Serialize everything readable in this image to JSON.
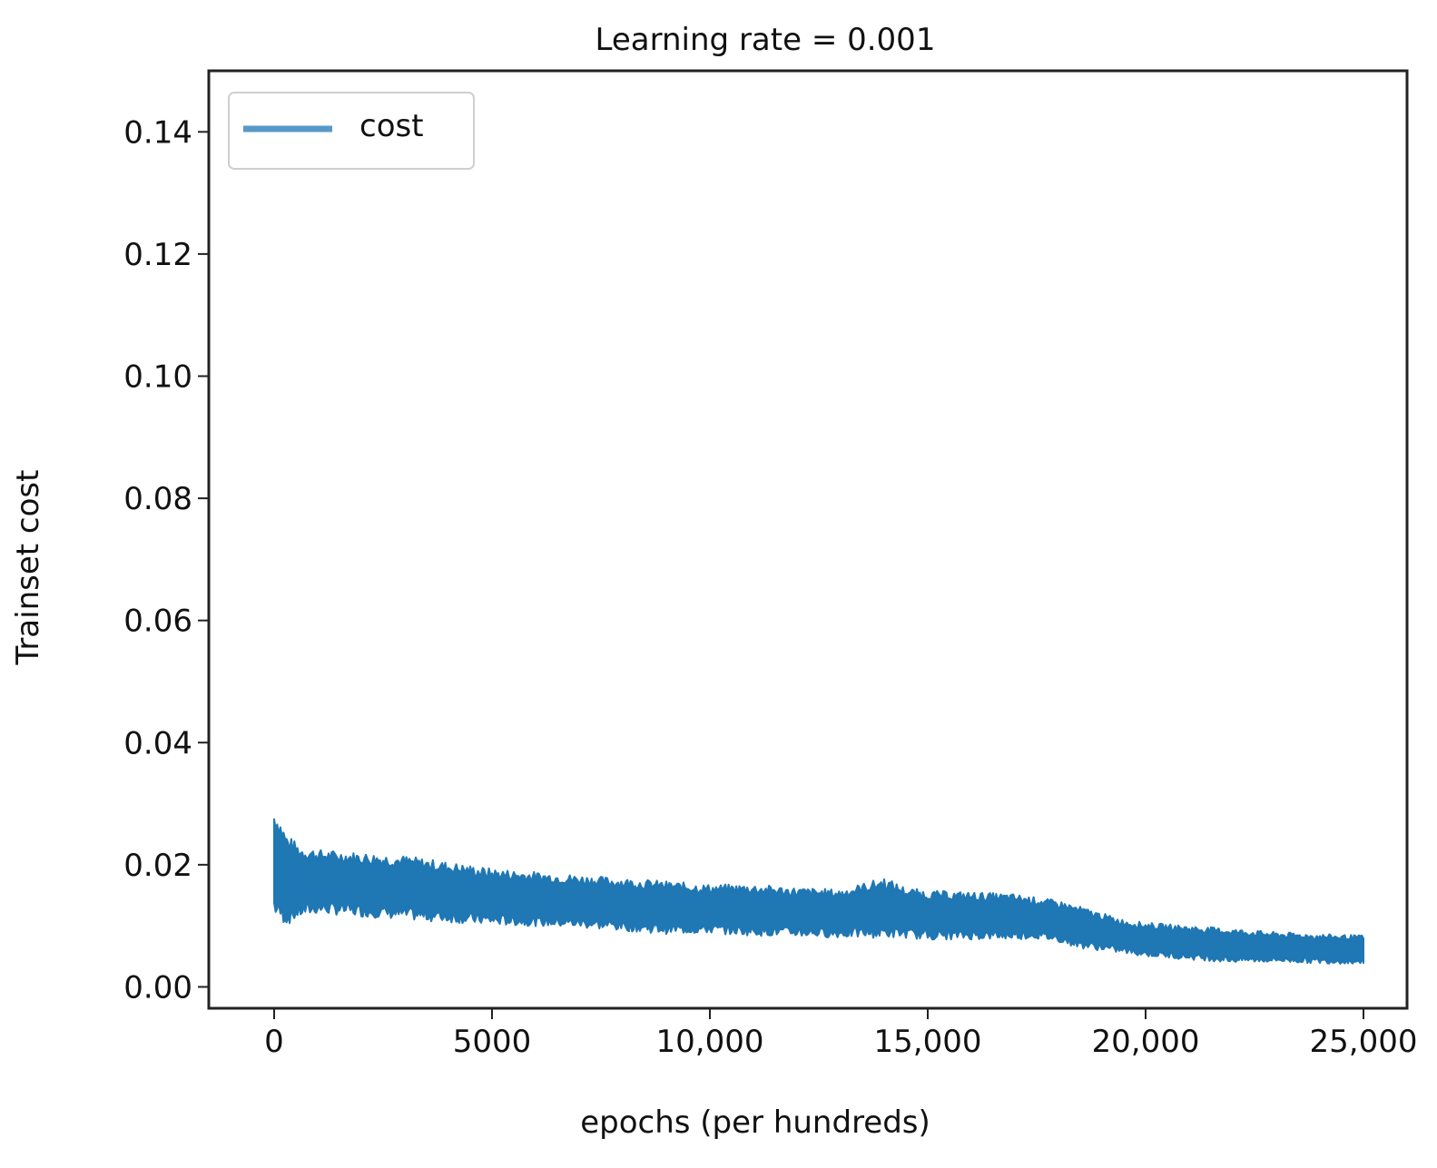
{
  "chart_data": {
    "type": "line",
    "title": "Learning rate = 0.001",
    "xlabel": "epochs (per hundreds)",
    "ylabel": "Trainset cost",
    "xlim": [
      -1500,
      26000
    ],
    "ylim": [
      -0.0035,
      0.15
    ],
    "x_ticks": [
      0,
      5000,
      10000,
      15000,
      20000,
      25000
    ],
    "x_tick_labels": [
      "0",
      "5000",
      "10,000",
      "15,000",
      "20,000",
      "25,000"
    ],
    "y_ticks": [
      0.0,
      0.02,
      0.04,
      0.06,
      0.08,
      0.1,
      0.12,
      0.14
    ],
    "y_tick_labels": [
      "0.00",
      "0.02",
      "0.04",
      "0.06",
      "0.08",
      "0.10",
      "0.12",
      "0.14"
    ],
    "grid": false,
    "legend": {
      "position": "upper-left",
      "entries": [
        "cost"
      ]
    },
    "series": [
      {
        "name": "cost",
        "color": "#1f77b4",
        "x": [
          0,
          100,
          300,
          600,
          1000,
          2000,
          3000,
          4000,
          5000,
          6000,
          7000,
          8000,
          9000,
          10000,
          11000,
          12000,
          13000,
          14000,
          14500,
          15000,
          16000,
          17000,
          17500,
          18000,
          18500,
          19000,
          19500,
          20000,
          21000,
          22000,
          23000,
          24000,
          25000
        ],
        "upper": [
          0.0275,
          0.0265,
          0.0235,
          0.022,
          0.0215,
          0.021,
          0.0205,
          0.0195,
          0.0185,
          0.018,
          0.0175,
          0.017,
          0.0165,
          0.016,
          0.016,
          0.0155,
          0.0152,
          0.017,
          0.0155,
          0.015,
          0.0148,
          0.0145,
          0.014,
          0.0135,
          0.0125,
          0.0115,
          0.0105,
          0.01,
          0.0095,
          0.009,
          0.0085,
          0.0082,
          0.008
        ],
        "lower": [
          0.0135,
          0.0125,
          0.0115,
          0.0125,
          0.013,
          0.0125,
          0.012,
          0.0115,
          0.011,
          0.0108,
          0.0105,
          0.01,
          0.0095,
          0.0095,
          0.0092,
          0.009,
          0.0088,
          0.009,
          0.0088,
          0.0085,
          0.0085,
          0.0085,
          0.0085,
          0.008,
          0.007,
          0.0065,
          0.006,
          0.0055,
          0.005,
          0.0045,
          0.0045,
          0.0043,
          0.0042
        ]
      }
    ]
  }
}
